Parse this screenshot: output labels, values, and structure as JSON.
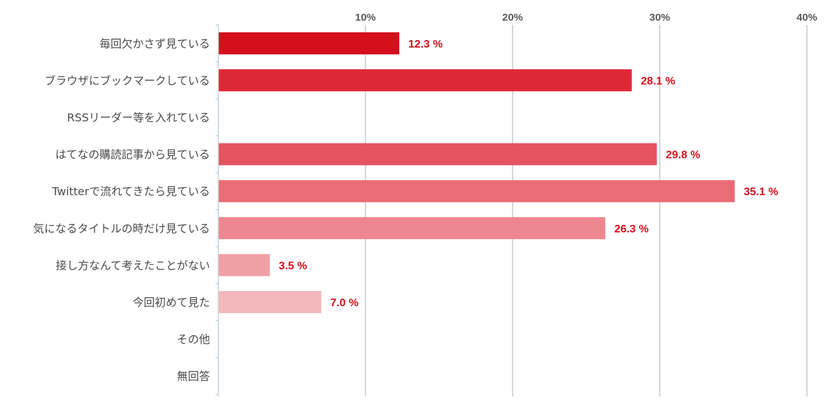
{
  "chart_data": {
    "type": "bar",
    "orientation": "horizontal",
    "categories": [
      "毎回欠かさず見ている",
      "ブラウザにブックマークしている",
      "RSSリーダー等を入れている",
      "はてなの購読記事から見ている",
      "Twitterで流れてきたら見ている",
      "気になるタイトルの時だけ見ている",
      "接し方なんて考えたことがない",
      "今回初めて見た",
      "その他",
      "無回答"
    ],
    "values": [
      12.3,
      28.1,
      null,
      29.8,
      35.1,
      26.3,
      3.5,
      7.0,
      null,
      null
    ],
    "value_labels": [
      "12.3 %",
      "28.1 %",
      "",
      "29.8 %",
      "35.1 %",
      "26.3 %",
      "3.5 %",
      "7.0 %",
      "",
      ""
    ],
    "bar_colors": [
      "#d50f1c",
      "#df2836",
      "#e23f4b",
      "#e55460",
      "#ea6c75",
      "#ee8790",
      "#f0a1a6",
      "#f3b8bb",
      "#f5c8ca",
      "#f8d6d8"
    ],
    "label_color": "#d50f1c",
    "xlim": [
      0,
      40
    ],
    "xticks": [
      10,
      20,
      30,
      40
    ],
    "xtick_labels": [
      "10%",
      "20%",
      "30%",
      "40%"
    ],
    "title": "",
    "xlabel": "",
    "ylabel": "",
    "grid": "vertical",
    "legend": "none"
  }
}
